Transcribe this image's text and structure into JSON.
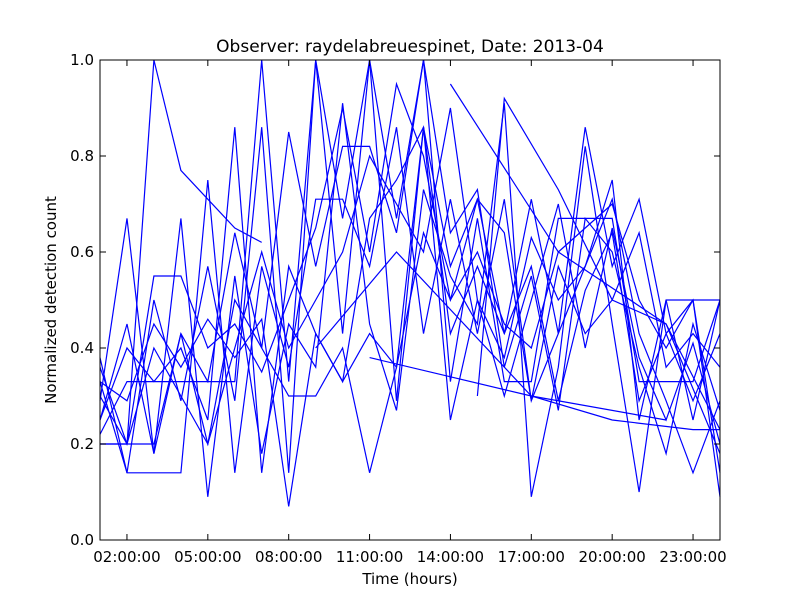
{
  "chart_data": {
    "type": "line",
    "title": "Observer: raydelabreuespinet, Date: 2013-04",
    "xlabel": "Time (hours)",
    "ylabel": "Normalized detection count",
    "xlim": [
      1.0,
      24.0
    ],
    "ylim": [
      0.0,
      1.0
    ],
    "xticks": [
      {
        "value": 2,
        "label": "02:00:00"
      },
      {
        "value": 5,
        "label": "05:00:00"
      },
      {
        "value": 8,
        "label": "08:00:00"
      },
      {
        "value": 11,
        "label": "11:00:00"
      },
      {
        "value": 14,
        "label": "14:00:00"
      },
      {
        "value": 17,
        "label": "17:00:00"
      },
      {
        "value": 20,
        "label": "20:00:00"
      },
      {
        "value": 23,
        "label": "23:00:00"
      }
    ],
    "yticks": [
      {
        "value": 0.0,
        "label": "0.0"
      },
      {
        "value": 0.2,
        "label": "0.2"
      },
      {
        "value": 0.4,
        "label": "0.4"
      },
      {
        "value": 0.6,
        "label": "0.6"
      },
      {
        "value": 0.8,
        "label": "0.8"
      },
      {
        "value": 1.0,
        "label": "1.0"
      }
    ],
    "grid": false,
    "legend": "none",
    "line_color": "#0000ff",
    "series": [
      {
        "x": [
          1,
          2,
          3,
          4,
          5,
          6,
          7,
          8,
          9,
          10,
          11,
          12,
          13,
          14,
          15,
          16,
          17,
          18,
          19,
          20,
          21,
          22,
          23,
          24
        ],
        "y": [
          0.3,
          0.2,
          0.2,
          0.43,
          0.33,
          0.64,
          0.4,
          0.85,
          0.57,
          0.82,
          0.82,
          0.64,
          1.0,
          0.64,
          0.73,
          0.36,
          0.55,
          0.27,
          0.67,
          0.6,
          0.36,
          0.18,
          0.45,
          0.27
        ]
      },
      {
        "x": [
          1,
          2,
          3,
          4,
          5,
          6,
          7,
          8,
          9,
          10,
          11,
          12,
          13,
          14,
          15,
          16,
          17,
          18,
          19,
          20,
          21,
          22,
          23,
          24
        ],
        "y": [
          0.38,
          0.14,
          0.14,
          0.14,
          0.75,
          0.14,
          0.57,
          0.36,
          0.71,
          0.71,
          0.57,
          0.86,
          0.43,
          0.71,
          0.43,
          0.71,
          0.29,
          0.43,
          0.57,
          0.71,
          0.43,
          0.29,
          0.14,
          0.29
        ]
      },
      {
        "x": [
          1,
          2,
          3,
          4,
          5,
          6,
          7,
          8,
          9,
          10,
          11,
          12,
          13,
          14,
          15,
          16,
          17,
          18,
          19,
          20,
          21,
          22,
          23,
          24
        ],
        "y": [
          0.2,
          0.2,
          0.55,
          0.55,
          0.4,
          0.45,
          0.35,
          0.5,
          0.65,
          0.9,
          0.6,
          0.95,
          0.8,
          0.5,
          0.6,
          0.45,
          0.4,
          0.6,
          0.65,
          0.7,
          0.5,
          0.4,
          0.5,
          0.5
        ]
      },
      {
        "x": [
          1,
          2,
          3,
          4,
          5,
          6,
          7,
          8,
          9,
          10,
          11,
          12,
          13,
          14,
          15,
          16,
          17,
          18,
          19,
          20,
          21,
          22,
          23,
          24
        ],
        "y": [
          0.22,
          0.33,
          0.33,
          0.33,
          0.33,
          0.33,
          1.0,
          0.33,
          1.0,
          0.67,
          1.0,
          0.67,
          1.0,
          0.33,
          0.67,
          0.33,
          0.33,
          0.67,
          0.67,
          0.67,
          0.33,
          0.33,
          0.33,
          0.5
        ]
      },
      {
        "x": [
          1,
          2,
          3,
          4,
          5,
          6,
          7,
          8,
          9,
          10,
          11,
          12,
          13,
          14,
          15,
          16,
          17,
          18,
          19,
          20,
          21,
          22,
          23,
          24
        ],
        "y": [
          0.25,
          0.45,
          0.18,
          0.67,
          0.09,
          0.55,
          0.18,
          0.45,
          0.36,
          0.91,
          0.45,
          0.27,
          0.73,
          0.55,
          0.45,
          0.91,
          0.09,
          0.36,
          0.82,
          0.45,
          0.1,
          0.5,
          0.5,
          0.09
        ]
      },
      {
        "x": [
          1,
          2,
          3,
          4,
          5,
          6,
          7,
          8,
          9,
          10,
          11,
          12,
          13,
          14,
          15,
          16,
          17,
          18,
          19,
          20,
          21,
          22,
          23,
          24
        ],
        "y": [
          0.33,
          0.14,
          0.5,
          0.29,
          0.57,
          0.29,
          0.86,
          0.14,
          1.0,
          0.43,
          1.0,
          0.29,
          0.86,
          0.57,
          0.71,
          0.43,
          0.71,
          0.43,
          0.86,
          0.57,
          0.71,
          0.43,
          0.29,
          0.43
        ]
      },
      {
        "x": [
          1,
          2,
          3,
          4,
          5,
          6,
          7,
          8,
          9,
          10,
          11,
          12,
          13,
          14,
          15,
          16,
          17,
          18,
          19,
          20,
          21,
          22,
          23,
          24
        ],
        "y": [
          0.29,
          0.67,
          0.18,
          0.43,
          0.2,
          0.4,
          0.6,
          0.4,
          0.5,
          0.6,
          0.8,
          0.7,
          0.6,
          0.9,
          0.5,
          0.3,
          0.5,
          0.7,
          0.4,
          0.65,
          0.38,
          0.25,
          0.41,
          0.2
        ]
      },
      {
        "x": [
          1,
          2,
          3,
          4,
          5,
          6,
          7,
          8,
          9,
          10,
          11,
          12,
          13,
          14,
          15,
          16,
          17,
          18,
          19,
          20,
          21,
          22,
          23,
          24
        ],
        "y": [
          0.36,
          0.2,
          0.4,
          0.3,
          0.2,
          0.5,
          0.4,
          0.3,
          0.3,
          0.4,
          0.14,
          0.36,
          0.64,
          0.5,
          0.71,
          0.64,
          0.29,
          0.57,
          0.43,
          0.5,
          0.64,
          0.36,
          0.43,
          0.36
        ]
      },
      {
        "x": [
          1,
          2,
          3,
          4,
          5,
          6,
          7,
          8,
          9,
          10,
          11,
          12,
          13,
          14,
          15,
          16,
          17,
          18,
          19,
          20,
          21,
          22,
          23,
          24
        ],
        "y": [
          0.25,
          0.4,
          0.33,
          0.4,
          0.25,
          0.86,
          0.14,
          0.57,
          0.43,
          0.33,
          0.67,
          0.75,
          0.86,
          0.25,
          0.5,
          0.38,
          0.63,
          0.5,
          0.57,
          0.75,
          0.25,
          0.5,
          0.25,
          0.5
        ]
      },
      {
        "x": [
          1,
          2,
          3,
          4,
          5,
          6,
          7,
          8,
          9,
          10,
          11,
          12,
          13,
          14,
          15,
          16,
          17,
          18,
          19,
          20,
          21,
          22,
          23,
          24
        ],
        "y": [
          0.33,
          0.29,
          0.45,
          0.36,
          0.46,
          0.38,
          0.46,
          0.07,
          0.43,
          0.33,
          0.43,
          0.36,
          0.86,
          0.43,
          0.57,
          0.43,
          0.57,
          0.29,
          0.52,
          0.64,
          0.29,
          0.43,
          0.5,
          0.14
        ]
      },
      {
        "x": [
          1,
          2,
          3,
          4,
          5,
          6,
          7
        ],
        "y": [
          0.2,
          0.2,
          1.0,
          0.77,
          0.71,
          0.65,
          0.62
        ]
      },
      {
        "x": [
          9,
          12,
          17,
          20,
          23,
          24
        ],
        "y": [
          0.4,
          0.6,
          0.3,
          0.25,
          0.23,
          0.23
        ]
      },
      {
        "x": [
          11,
          17,
          22
        ],
        "y": [
          0.38,
          0.3,
          0.25
        ]
      },
      {
        "x": [
          14,
          18,
          22,
          24
        ],
        "y": [
          0.95,
          0.6,
          0.45,
          0.23
        ]
      },
      {
        "x": [
          15,
          16,
          18,
          20,
          22,
          24
        ],
        "y": [
          0.3,
          0.92,
          0.73,
          0.5,
          0.45,
          0.18
        ]
      }
    ]
  }
}
